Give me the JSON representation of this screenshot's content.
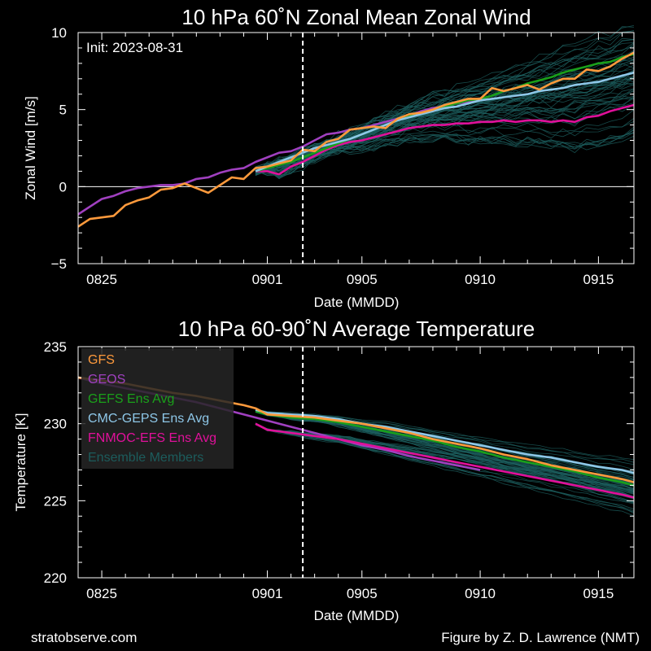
{
  "footer": {
    "left": "stratobserve.com",
    "right": "Figure by Z. D. Lawrence (NMT)"
  },
  "colors": {
    "GFS": "#ff9a3c",
    "GEOS": "#a040c0",
    "GEFS Ens Avg": "#1aa01a",
    "CMC-GEPS Ens Avg": "#8ec7e8",
    "FNMOC-EFS Ens Avg": "#e0109a",
    "Ensemble Members": "#1c5c5c"
  },
  "chart_data": [
    {
      "type": "line",
      "title": "10 hPa  60˚N   Zonal Mean Zonal Wind",
      "xlabel": "Date (MMDD)",
      "ylabel": "Zonal  Wind   [m/s]",
      "annotation": "Init: 2023-08-31",
      "init_date_index": 8.5,
      "x_range_days": [
        -1,
        22.5
      ],
      "ylim": [
        -5,
        10
      ],
      "yticks": [
        -5,
        0,
        5,
        10
      ],
      "xticks": [
        {
          "day": 0,
          "label": "0825"
        },
        {
          "day": 7,
          "label": "0901"
        },
        {
          "day": 11,
          "label": "0905"
        },
        {
          "day": 16,
          "label": "0910"
        },
        {
          "day": 21,
          "label": "0915"
        }
      ],
      "zero_line": true,
      "series": [
        {
          "name": "GFS",
          "x": [
            -1,
            -0.5,
            0,
            0.5,
            1,
            1.5,
            2,
            2.5,
            3,
            3.5,
            4,
            4.5,
            5,
            5.5,
            6,
            6.5,
            7,
            7.5,
            8,
            8.5,
            9,
            9.5,
            10,
            10.5,
            11,
            11.5,
            12,
            12.5,
            13,
            13.5,
            14,
            14.5,
            15,
            15.5,
            16,
            16.5,
            17,
            17.5,
            18,
            18.5,
            19,
            19.5,
            20,
            20.5,
            21,
            21.5,
            22,
            22.5
          ],
          "y": [
            -2.6,
            -2.1,
            -2.0,
            -1.9,
            -1.2,
            -0.9,
            -0.7,
            -0.2,
            -0.1,
            0.2,
            -0.1,
            -0.4,
            0.1,
            0.6,
            0.5,
            1.2,
            1.3,
            1.5,
            1.7,
            2.4,
            2.3,
            2.9,
            3.1,
            3.7,
            3.8,
            3.9,
            3.8,
            4.4,
            4.7,
            4.8,
            5.0,
            5.3,
            5.5,
            5.7,
            5.7,
            6.4,
            6.2,
            6.4,
            6.6,
            6.3,
            6.7,
            7.0,
            7.0,
            7.6,
            7.5,
            7.8,
            8.3,
            8.7
          ]
        },
        {
          "name": "GEOS",
          "x": [
            -1,
            -0.5,
            0,
            0.5,
            1,
            1.5,
            2,
            2.5,
            3,
            3.5,
            4,
            4.5,
            5,
            5.5,
            6,
            6.5,
            7,
            7.5,
            8,
            8.5,
            9,
            9.5,
            10,
            10.5,
            11,
            11.5,
            12,
            12.5,
            13,
            13.5,
            14,
            14.5,
            15,
            15.5,
            16
          ],
          "y": [
            -1.8,
            -1.3,
            -0.8,
            -0.6,
            -0.3,
            -0.1,
            0.0,
            0.1,
            0.1,
            0.2,
            0.5,
            0.6,
            0.9,
            1.1,
            1.2,
            1.6,
            1.9,
            2.2,
            2.3,
            2.6,
            3.0,
            3.4,
            3.5,
            3.7,
            3.8,
            4.0,
            4.2,
            4.4,
            4.6,
            4.9,
            5.1,
            5.2,
            5.4,
            5.5,
            5.6
          ]
        },
        {
          "name": "GEFS Ens Avg",
          "x": [
            6.5,
            7,
            7.5,
            8,
            8.5,
            9,
            9.5,
            10,
            10.5,
            11,
            11.5,
            12,
            12.5,
            13,
            13.5,
            14,
            14.5,
            15,
            15.5,
            16,
            16.5,
            17,
            17.5,
            18,
            18.5,
            19,
            19.5,
            20,
            20.5,
            21,
            21.5,
            22,
            22.5
          ],
          "y": [
            1.0,
            1.2,
            1.4,
            1.6,
            1.9,
            2.2,
            2.5,
            2.8,
            3.1,
            3.4,
            3.7,
            4.0,
            4.3,
            4.6,
            4.8,
            5.0,
            5.2,
            5.4,
            5.6,
            5.7,
            5.9,
            6.2,
            6.4,
            6.7,
            6.9,
            7.1,
            7.4,
            7.6,
            7.8,
            8.0,
            8.1,
            8.4,
            8.6
          ]
        },
        {
          "name": "CMC-GEPS Ens Avg",
          "x": [
            6.5,
            7,
            7.5,
            8,
            8.5,
            9,
            9.5,
            10,
            10.5,
            11,
            11.5,
            12,
            12.5,
            13,
            13.5,
            14,
            14.5,
            15,
            15.5,
            16,
            16.5,
            17,
            17.5,
            18,
            18.5,
            19,
            19.5,
            20,
            20.5,
            21,
            21.5,
            22,
            22.5
          ],
          "y": [
            1.0,
            1.3,
            1.6,
            1.9,
            2.2,
            2.5,
            2.7,
            2.9,
            3.1,
            3.4,
            3.7,
            4.0,
            4.3,
            4.5,
            4.7,
            4.9,
            5.1,
            5.2,
            5.4,
            5.6,
            5.7,
            5.8,
            5.9,
            6.0,
            6.2,
            6.3,
            6.4,
            6.6,
            6.7,
            6.8,
            7.0,
            7.2,
            7.4
          ]
        },
        {
          "name": "FNMOC-EFS Ens Avg",
          "x": [
            6.5,
            7,
            7.5,
            8,
            8.5,
            9,
            9.5,
            10,
            10.5,
            11,
            11.5,
            12,
            12.5,
            13,
            13.5,
            14,
            14.5,
            15,
            15.5,
            16,
            16.5,
            17,
            17.5,
            18,
            18.5,
            19,
            19.5,
            20,
            20.5,
            21,
            21.5,
            22,
            22.5
          ],
          "y": [
            1.0,
            1.0,
            0.8,
            1.3,
            1.6,
            2.0,
            2.4,
            2.7,
            2.9,
            3.0,
            3.2,
            3.4,
            3.6,
            3.8,
            3.9,
            4.0,
            4.0,
            4.1,
            4.1,
            4.2,
            4.2,
            4.3,
            4.2,
            4.3,
            4.3,
            4.2,
            4.3,
            4.2,
            4.5,
            4.6,
            4.9,
            5.1,
            5.3
          ]
        }
      ]
    },
    {
      "type": "line",
      "title": "10 hPa  60-90˚N Average Temperature",
      "xlabel": "Date (MMDD)",
      "ylabel": "Temperature  [K]",
      "init_date_index": 8.5,
      "x_range_days": [
        -1,
        22.5
      ],
      "ylim": [
        220,
        235
      ],
      "yticks": [
        220,
        225,
        230,
        235
      ],
      "xticks": [
        {
          "day": 0,
          "label": "0825"
        },
        {
          "day": 7,
          "label": "0901"
        },
        {
          "day": 11,
          "label": "0905"
        },
        {
          "day": 16,
          "label": "0910"
        },
        {
          "day": 21,
          "label": "0915"
        }
      ],
      "legend": {
        "placement": "top-left",
        "entries": [
          "GFS",
          "GEOS",
          "GEFS Ens Avg",
          "CMC-GEPS Ens Avg",
          "FNMOC-EFS Ens Avg",
          "Ensemble Members"
        ]
      },
      "series": [
        {
          "name": "GFS",
          "x": [
            -1,
            0,
            1,
            2,
            3,
            4,
            5,
            6,
            6.5,
            7,
            8,
            9,
            10,
            11,
            12,
            13,
            14,
            15,
            16,
            17,
            18,
            19,
            20,
            21,
            22,
            22.5
          ],
          "y": [
            233.0,
            232.8,
            232.6,
            232.3,
            232.0,
            231.8,
            231.5,
            231.2,
            231.0,
            230.6,
            230.5,
            230.4,
            230.2,
            230.0,
            229.7,
            229.4,
            229.0,
            228.7,
            228.4,
            228.0,
            227.7,
            227.3,
            227.0,
            226.7,
            226.4,
            226.2
          ]
        },
        {
          "name": "GEOS",
          "x": [
            -1,
            0,
            1,
            2,
            3,
            4,
            5,
            6,
            7,
            8,
            9,
            10,
            11,
            12,
            13,
            14,
            15,
            16
          ],
          "y": [
            233.0,
            232.6,
            232.3,
            232.0,
            231.7,
            231.4,
            231.0,
            230.6,
            230.2,
            229.8,
            229.4,
            229.0,
            228.6,
            228.3,
            227.9,
            227.6,
            227.3,
            227.0
          ]
        },
        {
          "name": "GEFS Ens Avg",
          "x": [
            6.5,
            7,
            8,
            9,
            10,
            11,
            12,
            13,
            14,
            15,
            16,
            17,
            18,
            19,
            20,
            21,
            22,
            22.5
          ],
          "y": [
            230.8,
            230.6,
            230.4,
            230.3,
            230.1,
            229.8,
            229.5,
            229.2,
            228.9,
            228.5,
            228.2,
            227.8,
            227.5,
            227.2,
            226.9,
            226.5,
            226.2,
            226.0
          ]
        },
        {
          "name": "CMC-GEPS Ens Avg",
          "x": [
            6.5,
            7,
            8,
            9,
            10,
            11,
            12,
            13,
            14,
            15,
            16,
            17,
            18,
            19,
            20,
            21,
            22,
            22.5
          ],
          "y": [
            230.9,
            230.7,
            230.6,
            230.5,
            230.3,
            230.0,
            229.8,
            229.5,
            229.2,
            228.9,
            228.6,
            228.3,
            228.0,
            227.8,
            227.5,
            227.2,
            227.0,
            226.8
          ]
        },
        {
          "name": "FNMOC-EFS Ens Avg",
          "x": [
            6.5,
            7,
            8,
            9,
            10,
            11,
            12,
            13,
            14,
            15,
            16,
            17,
            18,
            19,
            20,
            21,
            22,
            22.5
          ],
          "y": [
            230.0,
            229.6,
            229.4,
            229.2,
            229.0,
            228.7,
            228.4,
            228.1,
            227.8,
            227.5,
            227.2,
            226.9,
            226.6,
            226.3,
            226.0,
            225.7,
            225.4,
            225.2
          ]
        }
      ]
    }
  ]
}
